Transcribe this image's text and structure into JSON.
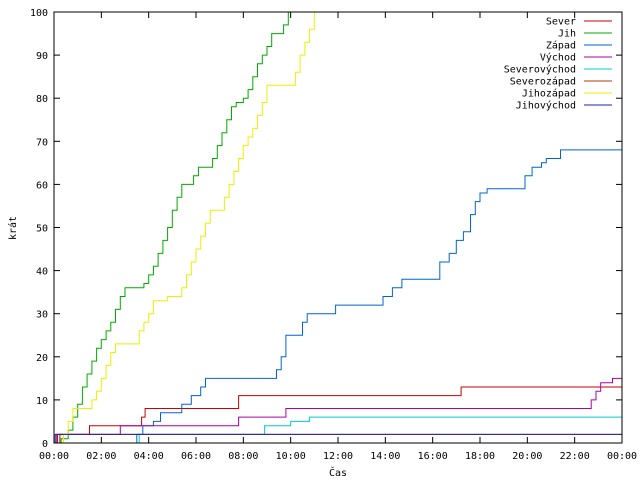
{
  "chart_data": {
    "type": "line",
    "title": "",
    "xlabel": "Čas",
    "ylabel": "krát",
    "xlim": [
      0,
      24
    ],
    "ylim": [
      0,
      100
    ],
    "x_unit": "hours",
    "x_tick_labels": [
      "00:00",
      "02:00",
      "04:00",
      "06:00",
      "08:00",
      "10:00",
      "12:00",
      "14:00",
      "16:00",
      "18:00",
      "20:00",
      "22:00",
      "00:00"
    ],
    "y_tick_labels": [
      "0",
      "10",
      "20",
      "30",
      "40",
      "50",
      "60",
      "70",
      "80",
      "90",
      "100"
    ],
    "grid": false,
    "legend_position": "top-right",
    "series": [
      {
        "name": "Sever",
        "color": "#cc0000",
        "step": true,
        "points": [
          [
            0.0,
            0
          ],
          [
            0.25,
            2
          ],
          [
            1.5,
            4
          ],
          [
            3.7,
            6
          ],
          [
            3.85,
            8
          ],
          [
            7.8,
            11
          ],
          [
            17.2,
            13
          ],
          [
            24.0,
            13
          ]
        ]
      },
      {
        "name": "Jih",
        "color": "#00aa00",
        "step": true,
        "points": [
          [
            0.0,
            0
          ],
          [
            0.3,
            1
          ],
          [
            0.6,
            3
          ],
          [
            0.8,
            6
          ],
          [
            1.0,
            9
          ],
          [
            1.2,
            13
          ],
          [
            1.4,
            16
          ],
          [
            1.6,
            19
          ],
          [
            1.8,
            22
          ],
          [
            2.0,
            24
          ],
          [
            2.2,
            26
          ],
          [
            2.4,
            28
          ],
          [
            2.6,
            31
          ],
          [
            2.8,
            34
          ],
          [
            3.0,
            36
          ],
          [
            3.8,
            37
          ],
          [
            4.0,
            39
          ],
          [
            4.2,
            41
          ],
          [
            4.4,
            44
          ],
          [
            4.6,
            47
          ],
          [
            4.8,
            50
          ],
          [
            5.0,
            54
          ],
          [
            5.2,
            57
          ],
          [
            5.4,
            60
          ],
          [
            5.9,
            62
          ],
          [
            6.1,
            64
          ],
          [
            6.7,
            66
          ],
          [
            6.9,
            69
          ],
          [
            7.1,
            72
          ],
          [
            7.3,
            75
          ],
          [
            7.5,
            78
          ],
          [
            7.7,
            79
          ],
          [
            8.0,
            80
          ],
          [
            8.2,
            82
          ],
          [
            8.4,
            85
          ],
          [
            8.6,
            88
          ],
          [
            8.8,
            90
          ],
          [
            9.0,
            92
          ],
          [
            9.2,
            95
          ],
          [
            9.7,
            97
          ],
          [
            9.9,
            100
          ],
          [
            10.0,
            100
          ]
        ]
      },
      {
        "name": "Západ",
        "color": "#0066cc",
        "step": true,
        "points": [
          [
            0.0,
            0
          ],
          [
            3.5,
            2
          ],
          [
            3.75,
            4
          ],
          [
            4.2,
            5
          ],
          [
            4.5,
            7
          ],
          [
            5.4,
            9
          ],
          [
            5.8,
            11
          ],
          [
            6.2,
            13
          ],
          [
            6.4,
            15
          ],
          [
            9.4,
            17
          ],
          [
            9.6,
            20
          ],
          [
            9.8,
            25
          ],
          [
            10.5,
            28
          ],
          [
            10.7,
            30
          ],
          [
            11.9,
            32
          ],
          [
            13.9,
            34
          ],
          [
            14.3,
            36
          ],
          [
            14.7,
            38
          ],
          [
            16.3,
            42
          ],
          [
            16.7,
            44
          ],
          [
            17.0,
            47
          ],
          [
            17.3,
            49
          ],
          [
            17.6,
            53
          ],
          [
            17.8,
            56
          ],
          [
            18.0,
            58
          ],
          [
            18.3,
            59
          ],
          [
            19.9,
            62
          ],
          [
            20.2,
            64
          ],
          [
            20.6,
            65
          ],
          [
            20.8,
            66
          ],
          [
            21.4,
            68
          ],
          [
            24.0,
            68
          ]
        ]
      },
      {
        "name": "Východ",
        "color": "#aa00aa",
        "step": true,
        "points": [
          [
            0.0,
            0
          ],
          [
            0.15,
            2
          ],
          [
            2.8,
            4
          ],
          [
            7.8,
            6
          ],
          [
            9.8,
            8
          ],
          [
            22.7,
            10
          ],
          [
            22.9,
            12
          ],
          [
            23.1,
            14
          ],
          [
            23.6,
            15
          ],
          [
            24.0,
            15
          ]
        ]
      },
      {
        "name": "Severovýchod",
        "color": "#00cccc",
        "step": true,
        "points": [
          [
            0.0,
            0
          ],
          [
            3.6,
            2
          ],
          [
            8.9,
            4
          ],
          [
            10.0,
            5
          ],
          [
            10.8,
            6
          ],
          [
            24.0,
            6
          ]
        ]
      },
      {
        "name": "Severozápad",
        "color": "#b33c00",
        "step": true,
        "points": [
          [
            0.0,
            0
          ],
          [
            0.1,
            2
          ],
          [
            24.0,
            2
          ]
        ]
      },
      {
        "name": "Jihozápad",
        "color": "#eeee00",
        "step": true,
        "points": [
          [
            0.0,
            0
          ],
          [
            0.4,
            2
          ],
          [
            0.6,
            5
          ],
          [
            0.8,
            8
          ],
          [
            1.6,
            10
          ],
          [
            1.8,
            12
          ],
          [
            2.0,
            15
          ],
          [
            2.2,
            18
          ],
          [
            2.4,
            21
          ],
          [
            2.6,
            23
          ],
          [
            3.6,
            26
          ],
          [
            3.8,
            28
          ],
          [
            4.0,
            30
          ],
          [
            4.2,
            33
          ],
          [
            4.8,
            34
          ],
          [
            5.4,
            36
          ],
          [
            5.6,
            39
          ],
          [
            5.8,
            42
          ],
          [
            6.0,
            45
          ],
          [
            6.2,
            48
          ],
          [
            6.4,
            51
          ],
          [
            6.6,
            54
          ],
          [
            7.2,
            57
          ],
          [
            7.4,
            60
          ],
          [
            7.6,
            63
          ],
          [
            7.8,
            66
          ],
          [
            8.0,
            69
          ],
          [
            8.2,
            71
          ],
          [
            8.4,
            73
          ],
          [
            8.6,
            76
          ],
          [
            8.8,
            79
          ],
          [
            9.0,
            83
          ],
          [
            10.2,
            86
          ],
          [
            10.4,
            90
          ],
          [
            10.6,
            93
          ],
          [
            10.8,
            96
          ],
          [
            11.0,
            100
          ],
          [
            11.1,
            100
          ]
        ]
      },
      {
        "name": "Jihovýchod",
        "color": "#2222aa",
        "step": true,
        "points": [
          [
            0.0,
            0
          ],
          [
            0.05,
            2
          ],
          [
            24.0,
            2
          ]
        ]
      }
    ]
  }
}
